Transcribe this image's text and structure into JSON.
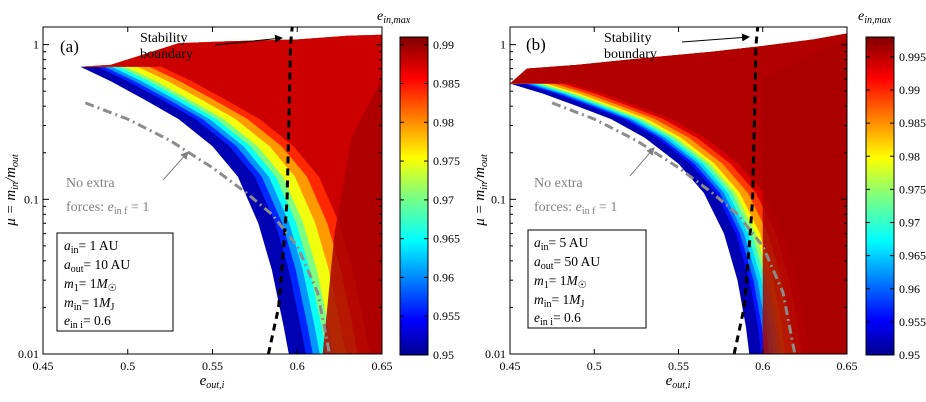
{
  "chart_data": [
    {
      "type": "heatmap",
      "panel_label": "(a)",
      "xlabel": "e_out,i",
      "ylabel": "μ = m_in/m_out",
      "xlim": [
        0.45,
        0.65
      ],
      "ylim": [
        0.01,
        1.3
      ],
      "yscale": "log",
      "x_ticks": [
        "0.45",
        "0.5",
        "0.55",
        "0.6",
        "0.65"
      ],
      "y_ticks": [
        "0.01",
        "0.1",
        "1"
      ],
      "colorbar_label": "e_in,max",
      "colorbar_range": [
        0.95,
        0.991
      ],
      "colorbar_ticks": [
        "0.95",
        "0.955",
        "0.96",
        "0.965",
        "0.97",
        "0.975",
        "0.98",
        "0.985",
        "0.99"
      ],
      "stability_label": [
        "Stability",
        "boundary"
      ],
      "stability_boundary": [
        [
          0.583,
          0.01
        ],
        [
          0.589,
          0.02
        ],
        [
          0.592,
          0.05
        ],
        [
          0.594,
          0.1
        ],
        [
          0.595,
          0.3
        ],
        [
          0.596,
          1.0
        ],
        [
          0.597,
          1.3
        ]
      ],
      "no_extra_label": [
        "No extra",
        "forces: e_in f = 1"
      ],
      "no_extra_curve": [
        [
          0.475,
          0.42
        ],
        [
          0.5,
          0.33
        ],
        [
          0.525,
          0.24
        ],
        [
          0.55,
          0.16
        ],
        [
          0.57,
          0.11
        ],
        [
          0.585,
          0.08
        ],
        [
          0.6,
          0.05
        ],
        [
          0.612,
          0.025
        ],
        [
          0.619,
          0.01
        ]
      ],
      "params": [
        "a_in = 1 AU",
        "a_out = 10 AU",
        "m_1 = 1M_☉",
        "m_in = 1M_J",
        "e_in i = 0.6"
      ],
      "region_lower_edge": [
        [
          0.472,
          0.72
        ],
        [
          0.49,
          0.58
        ],
        [
          0.51,
          0.44
        ],
        [
          0.53,
          0.33
        ],
        [
          0.55,
          0.22
        ],
        [
          0.565,
          0.14
        ],
        [
          0.577,
          0.07
        ],
        [
          0.585,
          0.035
        ],
        [
          0.592,
          0.015
        ],
        [
          0.595,
          0.01
        ]
      ],
      "region_upper_edge": [
        [
          0.472,
          0.72
        ],
        [
          0.49,
          0.74
        ],
        [
          0.53,
          1.02
        ],
        [
          0.56,
          1.05
        ],
        [
          0.6,
          1.08
        ],
        [
          0.63,
          1.14
        ],
        [
          0.65,
          1.16
        ]
      ],
      "band_levels": [
        0.95,
        0.955,
        0.96,
        0.965,
        0.97,
        0.975,
        0.98,
        0.985,
        0.989
      ]
    },
    {
      "type": "heatmap",
      "panel_label": "(b)",
      "xlabel": "e_out,i",
      "ylabel": "μ = m_in/m_out",
      "xlim": [
        0.45,
        0.65
      ],
      "ylim": [
        0.01,
        1.3
      ],
      "yscale": "log",
      "x_ticks": [
        "0.45",
        "0.5",
        "0.55",
        "0.6",
        "0.65"
      ],
      "y_ticks": [
        "0.01",
        "0.1",
        "1"
      ],
      "colorbar_label": "e_in,max",
      "colorbar_range": [
        0.95,
        0.998
      ],
      "colorbar_ticks": [
        "0.95",
        "0.955",
        "0.96",
        "0.965",
        "0.97",
        "0.975",
        "0.98",
        "0.985",
        "0.99",
        "0.995"
      ],
      "stability_label": [
        "Stability",
        "boundary"
      ],
      "stability_boundary": [
        [
          0.583,
          0.01
        ],
        [
          0.589,
          0.02
        ],
        [
          0.592,
          0.05
        ],
        [
          0.594,
          0.1
        ],
        [
          0.595,
          0.3
        ],
        [
          0.596,
          1.0
        ],
        [
          0.597,
          1.3
        ]
      ],
      "no_extra_label": [
        "No extra",
        "forces: e_in f = 1"
      ],
      "no_extra_curve": [
        [
          0.475,
          0.42
        ],
        [
          0.5,
          0.33
        ],
        [
          0.525,
          0.24
        ],
        [
          0.55,
          0.16
        ],
        [
          0.57,
          0.11
        ],
        [
          0.585,
          0.08
        ],
        [
          0.6,
          0.05
        ],
        [
          0.612,
          0.025
        ],
        [
          0.619,
          0.01
        ]
      ],
      "params": [
        "a_in = 5 AU",
        "a_out = 50 AU",
        "m_1 = 1M_☉",
        "m_in = 1M_J",
        "e_in i = 0.6"
      ],
      "region_lower_edge": [
        [
          0.45,
          0.56
        ],
        [
          0.47,
          0.48
        ],
        [
          0.49,
          0.4
        ],
        [
          0.51,
          0.33
        ],
        [
          0.53,
          0.25
        ],
        [
          0.55,
          0.17
        ],
        [
          0.565,
          0.11
        ],
        [
          0.577,
          0.06
        ],
        [
          0.585,
          0.03
        ],
        [
          0.59,
          0.015
        ],
        [
          0.592,
          0.01
        ]
      ],
      "region_upper_edge": [
        [
          0.45,
          0.56
        ],
        [
          0.46,
          0.7
        ],
        [
          0.49,
          0.74
        ],
        [
          0.53,
          0.82
        ],
        [
          0.57,
          0.9
        ],
        [
          0.6,
          0.98
        ],
        [
          0.63,
          1.08
        ],
        [
          0.65,
          1.18
        ]
      ],
      "band_levels": [
        0.95,
        0.955,
        0.96,
        0.965,
        0.97,
        0.975,
        0.98,
        0.985,
        0.99,
        0.995,
        0.997
      ]
    }
  ]
}
